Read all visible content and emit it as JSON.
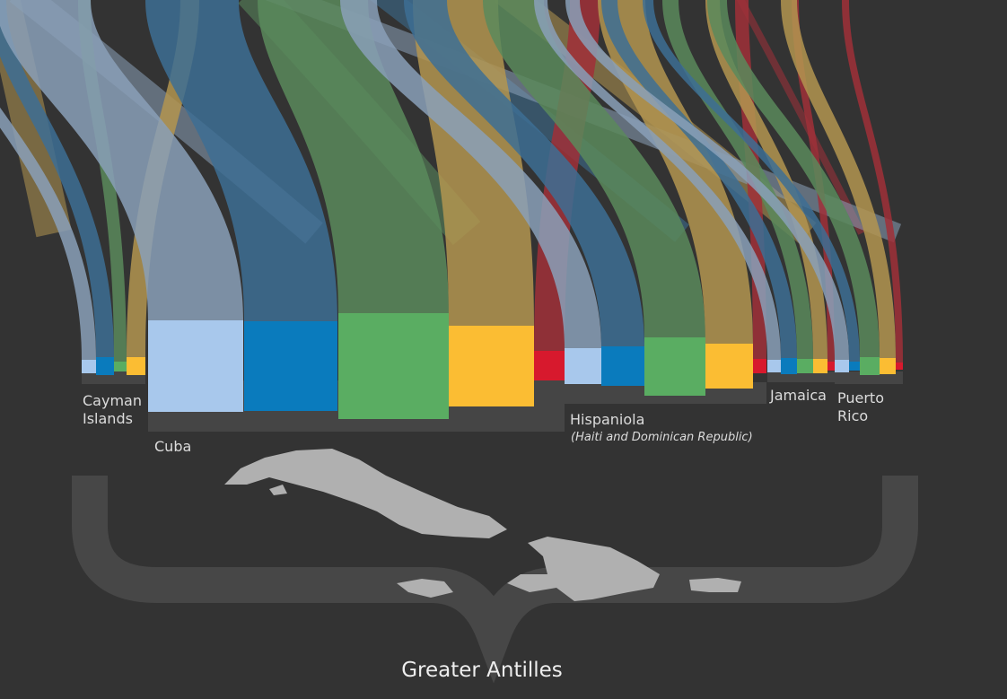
{
  "labels": {
    "cayman": [
      "Cayman",
      "Islands"
    ],
    "cuba": [
      "Cuba"
    ],
    "hispaniola": [
      "Hispaniola"
    ],
    "hispaniola_note": "(Haiti and Dominican Republic)",
    "jamaica": [
      "Jamaica"
    ],
    "puerto_rico": [
      "Puerto",
      "Rico"
    ]
  },
  "footer": {
    "title": "Greater Antilles"
  }
}
